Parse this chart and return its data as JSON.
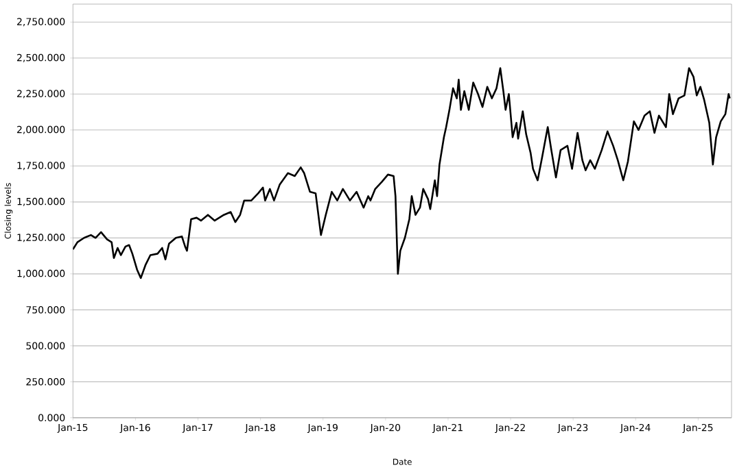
{
  "chart_data": {
    "type": "line",
    "xlabel": "Date",
    "ylabel": "Closing levels",
    "grid": "y",
    "xlim": [
      "2015-01-01",
      "2025-07-15"
    ],
    "ylim": [
      0,
      2875
    ],
    "xticks": [
      {
        "value": "2015-01-01",
        "label": "Jan-15"
      },
      {
        "value": "2016-01-01",
        "label": "Jan-16"
      },
      {
        "value": "2017-01-01",
        "label": "Jan-17"
      },
      {
        "value": "2018-01-01",
        "label": "Jan-18"
      },
      {
        "value": "2019-01-01",
        "label": "Jan-19"
      },
      {
        "value": "2020-01-01",
        "label": "Jan-20"
      },
      {
        "value": "2021-01-01",
        "label": "Jan-21"
      },
      {
        "value": "2022-01-01",
        "label": "Jan-22"
      },
      {
        "value": "2023-01-01",
        "label": "Jan-23"
      },
      {
        "value": "2024-01-01",
        "label": "Jan-24"
      },
      {
        "value": "2025-01-01",
        "label": "Jan-25"
      }
    ],
    "yticks": [
      {
        "value": 0,
        "label": "0.000"
      },
      {
        "value": 250,
        "label": "250.000"
      },
      {
        "value": 500,
        "label": "500.000"
      },
      {
        "value": 750,
        "label": "750.000"
      },
      {
        "value": 1000,
        "label": "1,000.000"
      },
      {
        "value": 1250,
        "label": "1,250.000"
      },
      {
        "value": 1500,
        "label": "1,500.000"
      },
      {
        "value": 1750,
        "label": "1,750.000"
      },
      {
        "value": 2000,
        "label": "2,000.000"
      },
      {
        "value": 2250,
        "label": "2,250.000"
      },
      {
        "value": 2500,
        "label": "2,500.000"
      },
      {
        "value": 2750,
        "label": "2,750.000"
      }
    ],
    "x": [
      "2015-01-01",
      "2015-01-27",
      "2015-03-07",
      "2015-04-16",
      "2015-05-13",
      "2015-06-14",
      "2015-07-19",
      "2015-08-15",
      "2015-08-28",
      "2015-09-19",
      "2015-10-08",
      "2015-11-04",
      "2015-11-25",
      "2015-12-14",
      "2016-01-10",
      "2016-02-01",
      "2016-02-28",
      "2016-03-28",
      "2016-05-09",
      "2016-06-05",
      "2016-06-24",
      "2016-07-15",
      "2016-08-24",
      "2016-09-28",
      "2016-10-17",
      "2016-10-28",
      "2016-11-21",
      "2016-12-23",
      "2017-01-19",
      "2017-02-28",
      "2017-04-08",
      "2017-06-01",
      "2017-07-11",
      "2017-08-07",
      "2017-09-04",
      "2017-09-28",
      "2017-11-09",
      "2017-12-19",
      "2018-01-15",
      "2018-01-28",
      "2018-02-25",
      "2018-03-21",
      "2018-04-23",
      "2018-06-10",
      "2018-07-20",
      "2018-08-24",
      "2018-09-13",
      "2018-10-17",
      "2018-11-19",
      "2018-12-20",
      "2019-01-17",
      "2019-02-21",
      "2019-03-25",
      "2019-04-27",
      "2019-06-07",
      "2019-07-16",
      "2019-08-26",
      "2019-09-22",
      "2019-10-05",
      "2019-11-02",
      "2019-12-11",
      "2020-01-15",
      "2020-02-17",
      "2020-02-28",
      "2020-03-13",
      "2020-03-27",
      "2020-04-23",
      "2020-05-19",
      "2020-06-02",
      "2020-06-24",
      "2020-07-20",
      "2020-08-08",
      "2020-09-05",
      "2020-09-18",
      "2020-10-15",
      "2020-10-28",
      "2020-11-11",
      "2020-12-07",
      "2020-12-20",
      "2021-01-09",
      "2021-01-30",
      "2021-02-21",
      "2021-03-04",
      "2021-03-17",
      "2021-04-06",
      "2021-05-02",
      "2021-05-28",
      "2021-06-25",
      "2021-07-21",
      "2021-08-18",
      "2021-09-14",
      "2021-10-11",
      "2021-11-02",
      "2021-11-20",
      "2021-12-03",
      "2021-12-22",
      "2022-01-13",
      "2022-02-04",
      "2022-02-14",
      "2022-03-13",
      "2022-04-02",
      "2022-04-28",
      "2022-05-12",
      "2022-06-08",
      "2022-07-04",
      "2022-08-06",
      "2022-08-27",
      "2022-09-23",
      "2022-10-20",
      "2022-11-29",
      "2022-12-26",
      "2023-01-27",
      "2023-02-24",
      "2023-03-15",
      "2023-04-11",
      "2023-05-08",
      "2023-06-17",
      "2023-07-21",
      "2023-08-23",
      "2023-09-19",
      "2023-10-21",
      "2023-11-17",
      "2023-12-22",
      "2024-01-18",
      "2024-02-22",
      "2024-03-24",
      "2024-04-20",
      "2024-05-16",
      "2024-06-26",
      "2024-07-15",
      "2024-08-06",
      "2024-09-08",
      "2024-10-12",
      "2024-11-08",
      "2024-12-04",
      "2024-12-23",
      "2025-01-14",
      "2025-02-05",
      "2025-03-07",
      "2025-03-28",
      "2025-04-16",
      "2025-05-13",
      "2025-06-09",
      "2025-06-28",
      "2025-07-05"
    ],
    "series": [
      {
        "color": "#000000",
        "values": [
          1170,
          1220,
          1250,
          1270,
          1250,
          1290,
          1240,
          1220,
          1110,
          1180,
          1130,
          1190,
          1200,
          1140,
          1030,
          970,
          1060,
          1130,
          1140,
          1180,
          1100,
          1210,
          1250,
          1260,
          1190,
          1160,
          1380,
          1390,
          1370,
          1410,
          1370,
          1410,
          1430,
          1360,
          1410,
          1510,
          1510,
          1560,
          1600,
          1510,
          1590,
          1510,
          1620,
          1700,
          1680,
          1740,
          1700,
          1570,
          1560,
          1270,
          1410,
          1570,
          1510,
          1590,
          1510,
          1570,
          1460,
          1540,
          1510,
          1590,
          1640,
          1690,
          1680,
          1540,
          1000,
          1160,
          1250,
          1380,
          1540,
          1410,
          1460,
          1590,
          1520,
          1450,
          1650,
          1540,
          1760,
          1950,
          2020,
          2140,
          2290,
          2220,
          2350,
          2140,
          2270,
          2140,
          2330,
          2250,
          2160,
          2300,
          2220,
          2290,
          2430,
          2270,
          2140,
          2250,
          1950,
          2050,
          1940,
          2130,
          1970,
          1840,
          1730,
          1650,
          1810,
          2020,
          1860,
          1670,
          1860,
          1890,
          1730,
          1980,
          1790,
          1720,
          1790,
          1730,
          1860,
          1990,
          1890,
          1790,
          1650,
          1780,
          2060,
          2000,
          2100,
          2130,
          1980,
          2100,
          2020,
          2250,
          2110,
          2220,
          2240,
          2430,
          2370,
          2240,
          2300,
          2210,
          2050,
          1760,
          1950,
          2060,
          2110,
          2250,
          2220
        ]
      }
    ]
  }
}
